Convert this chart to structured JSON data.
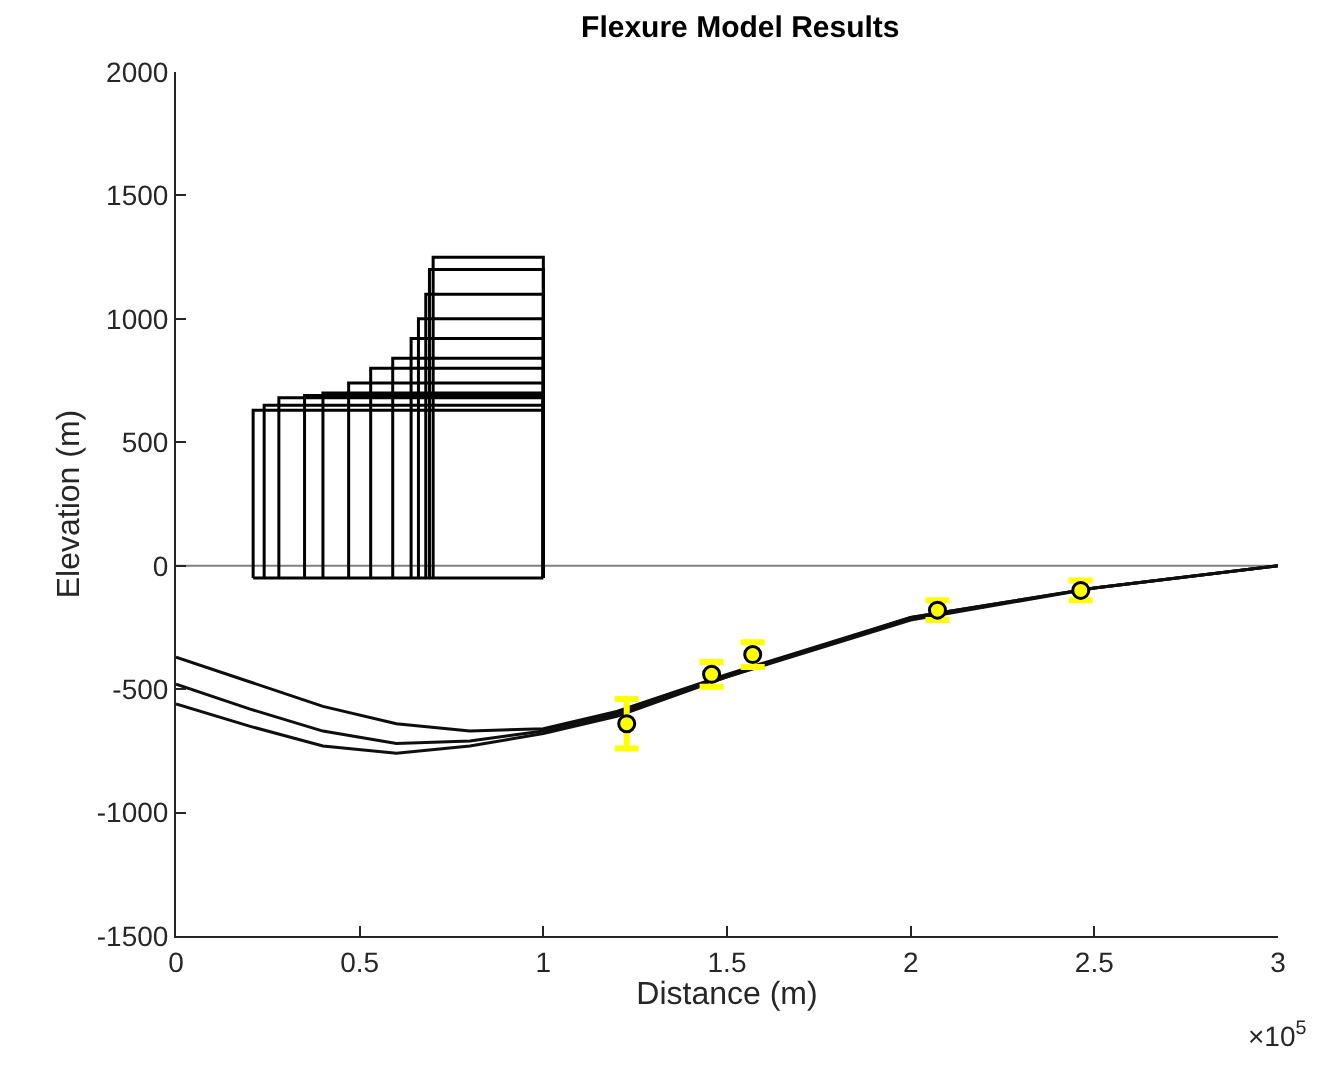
{
  "chart_data": {
    "type": "line",
    "title": "Flexure Model Results",
    "xlabel": "Distance (m)",
    "ylabel": "Elevation (m)",
    "annotations": [
      "×10$^{5}$"
    ],
    "xlim": [
      0,
      3
    ],
    "xticks": [
      0,
      0.5,
      1,
      1.5,
      2,
      2.5,
      3
    ],
    "ylim": [
      -1500,
      2000
    ],
    "yticks": [
      -1500,
      -1000,
      -500,
      0,
      500,
      1000,
      1500,
      2000
    ],
    "grid": false,
    "marker": "none",
    "line_style": "solid",
    "ref_lines": [
      {
        "axis": "y",
        "value": 0,
        "color": "#808080"
      }
    ],
    "series": [
      {
        "color": "#000000",
        "x": [
          0.21,
          0.21,
          1,
          1,
          null,
          0.24,
          0.24,
          1,
          1,
          null,
          0.28,
          0.28,
          1,
          1,
          null,
          0.35,
          0.35,
          1,
          1,
          null,
          0.4,
          0.4,
          1,
          1,
          null,
          0.47,
          0.47,
          1,
          1,
          null,
          0.53,
          0.53,
          1,
          1,
          null,
          0.59,
          0.59,
          1,
          1,
          null,
          0.64,
          0.64,
          1,
          1,
          null,
          0.66,
          0.66,
          1,
          1,
          null,
          0.68,
          0.68,
          1,
          1,
          null,
          0.69,
          0.69,
          1,
          1,
          null,
          0.7,
          0.7,
          1,
          1,
          null,
          0.21,
          1
        ],
        "values": [
          -50,
          630,
          630,
          -50,
          null,
          -50,
          650,
          650,
          -50,
          null,
          -50,
          680,
          680,
          -50,
          null,
          -50,
          690,
          690,
          -50,
          null,
          -50,
          700,
          700,
          -50,
          null,
          -50,
          740,
          740,
          -50,
          null,
          -50,
          800,
          800,
          -50,
          null,
          -50,
          840,
          840,
          -50,
          null,
          -50,
          920,
          920,
          -50,
          null,
          -50,
          1000,
          1000,
          -50,
          null,
          -50,
          1100,
          1100,
          -50,
          null,
          -50,
          1200,
          1200,
          -50,
          null,
          -50,
          1250,
          1250,
          -50,
          null,
          -50,
          -50
        ]
      },
      {
        "color": "#0d0d0d",
        "x": [
          0,
          0.2,
          0.4,
          0.6,
          0.8,
          1,
          1.2,
          1.5,
          2,
          2.5,
          3
        ],
        "values": [
          -370,
          -470,
          -570,
          -640,
          -670,
          -660,
          -590,
          -440,
          -210,
          -90,
          0
        ]
      },
      {
        "color": "#0e0e0e",
        "x": [
          0,
          0.2,
          0.4,
          0.6,
          0.8,
          1,
          1.2,
          1.5,
          2,
          2.5,
          3
        ],
        "values": [
          -480,
          -580,
          -670,
          -720,
          -710,
          -670,
          -600,
          -450,
          -210,
          -90,
          0
        ]
      },
      {
        "color": "#0f0f0f",
        "x": [
          0,
          0.2,
          0.4,
          0.6,
          0.8,
          1,
          1.2,
          1.5,
          2,
          2.5,
          3
        ],
        "values": [
          -560,
          -650,
          -730,
          -760,
          -730,
          -680,
          -610,
          -450,
          -220,
          -90,
          0
        ]
      },
      {
        "type": "scatter",
        "color": "#ffff00",
        "marker": "circle",
        "x": [
          1.227,
          1.458,
          1.57,
          2.073,
          2.463
        ],
        "values": [
          -640,
          -440,
          -360,
          -180,
          -100
        ],
        "errors": [
          100,
          50,
          50,
          40,
          40
        ]
      }
    ]
  }
}
